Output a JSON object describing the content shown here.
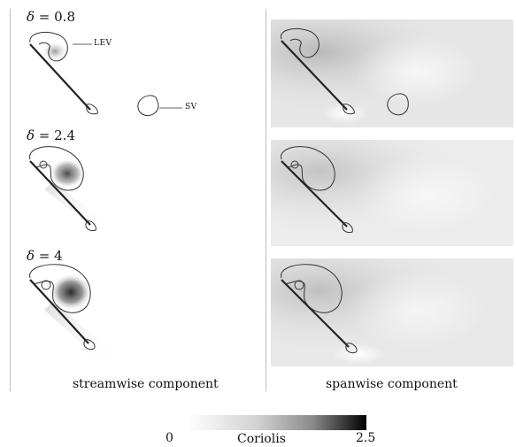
{
  "deltas": [
    {
      "symbol": "δ",
      "eq": " = ",
      "value": "0.8"
    },
    {
      "symbol": "δ",
      "eq": " = ",
      "value": "2.4"
    },
    {
      "symbol": "δ",
      "eq": " = ",
      "value": "4"
    }
  ],
  "annotations": {
    "lev": "LEV",
    "sv": "SV"
  },
  "captions": {
    "left": "streamwise component",
    "right": "spanwise component"
  },
  "colorbar": {
    "min": "0",
    "max": "2.5",
    "label": "Coriolis",
    "color_low": "#ffffff",
    "color_high": "#000000"
  }
}
